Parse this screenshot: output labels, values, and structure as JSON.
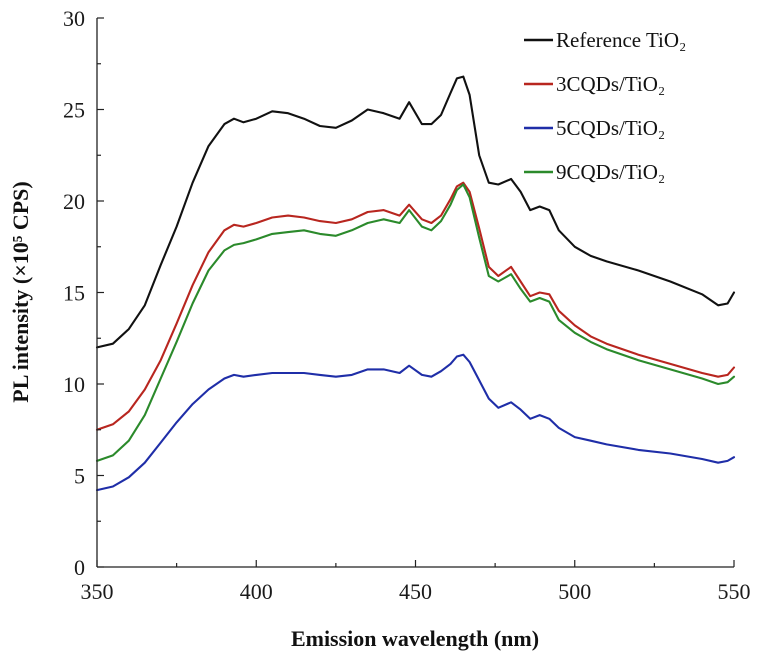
{
  "chart_data": {
    "type": "line",
    "title": "",
    "xlabel": "Emission wavelength (nm)",
    "ylabel": "PL intensity (×10⁵ CPS)",
    "xlim": [
      350,
      550
    ],
    "ylim": [
      0,
      30
    ],
    "xticks": [
      350,
      400,
      450,
      500,
      550
    ],
    "yticks": [
      0,
      5,
      10,
      15,
      20,
      25,
      30
    ],
    "legend_position": "top-right",
    "series": [
      {
        "name": "Reference TiO₂",
        "color": "#111111",
        "x": [
          350,
          355,
          360,
          365,
          370,
          375,
          380,
          385,
          390,
          393,
          396,
          400,
          405,
          410,
          415,
          420,
          425,
          430,
          435,
          440,
          445,
          448,
          452,
          455,
          458,
          461,
          463,
          465,
          467,
          470,
          473,
          476,
          480,
          483,
          486,
          489,
          492,
          495,
          500,
          505,
          510,
          520,
          530,
          540,
          545,
          548,
          550
        ],
        "y": [
          12.0,
          12.2,
          13.0,
          14.3,
          16.5,
          18.6,
          21.0,
          23.0,
          24.2,
          24.5,
          24.3,
          24.5,
          24.9,
          24.8,
          24.5,
          24.1,
          24.0,
          24.4,
          25.0,
          24.8,
          24.5,
          25.4,
          24.2,
          24.2,
          24.7,
          25.9,
          26.7,
          26.8,
          25.8,
          22.5,
          21.0,
          20.9,
          21.2,
          20.5,
          19.5,
          19.7,
          19.5,
          18.4,
          17.5,
          17.0,
          16.7,
          16.2,
          15.6,
          14.9,
          14.3,
          14.4,
          15.0
        ]
      },
      {
        "name": "3CQDs/TiO₂",
        "color": "#b8261f",
        "x": [
          350,
          355,
          360,
          365,
          370,
          375,
          380,
          385,
          390,
          393,
          396,
          400,
          405,
          410,
          415,
          420,
          425,
          430,
          435,
          440,
          445,
          448,
          452,
          455,
          458,
          461,
          463,
          465,
          467,
          470,
          473,
          476,
          480,
          483,
          486,
          489,
          492,
          495,
          500,
          505,
          510,
          520,
          530,
          540,
          545,
          548,
          550
        ],
        "y": [
          7.5,
          7.8,
          8.5,
          9.7,
          11.3,
          13.3,
          15.4,
          17.2,
          18.4,
          18.7,
          18.6,
          18.8,
          19.1,
          19.2,
          19.1,
          18.9,
          18.8,
          19.0,
          19.4,
          19.5,
          19.2,
          19.8,
          19.0,
          18.8,
          19.2,
          20.1,
          20.8,
          21.0,
          20.5,
          18.5,
          16.4,
          15.9,
          16.4,
          15.6,
          14.8,
          15.0,
          14.9,
          14.0,
          13.2,
          12.6,
          12.2,
          11.6,
          11.1,
          10.6,
          10.4,
          10.5,
          10.9
        ]
      },
      {
        "name": "5CQDs/TiO₂",
        "color": "#1f2ea8",
        "x": [
          350,
          355,
          360,
          365,
          370,
          375,
          380,
          385,
          390,
          393,
          396,
          400,
          405,
          410,
          415,
          420,
          425,
          430,
          435,
          440,
          445,
          448,
          452,
          455,
          458,
          461,
          463,
          465,
          467,
          470,
          473,
          476,
          480,
          483,
          486,
          489,
          492,
          495,
          500,
          505,
          510,
          520,
          530,
          540,
          545,
          548,
          550
        ],
        "y": [
          4.2,
          4.4,
          4.9,
          5.7,
          6.8,
          7.9,
          8.9,
          9.7,
          10.3,
          10.5,
          10.4,
          10.5,
          10.6,
          10.6,
          10.6,
          10.5,
          10.4,
          10.5,
          10.8,
          10.8,
          10.6,
          11.0,
          10.5,
          10.4,
          10.7,
          11.1,
          11.5,
          11.6,
          11.2,
          10.2,
          9.2,
          8.7,
          9.0,
          8.6,
          8.1,
          8.3,
          8.1,
          7.6,
          7.1,
          6.9,
          6.7,
          6.4,
          6.2,
          5.9,
          5.7,
          5.8,
          6.0
        ]
      },
      {
        "name": "9CQDs/TiO₂",
        "color": "#2b8a2b",
        "x": [
          350,
          355,
          360,
          365,
          370,
          375,
          380,
          385,
          390,
          393,
          396,
          400,
          405,
          410,
          415,
          420,
          425,
          430,
          435,
          440,
          445,
          448,
          452,
          455,
          458,
          461,
          463,
          465,
          467,
          470,
          473,
          476,
          480,
          483,
          486,
          489,
          492,
          495,
          500,
          505,
          510,
          520,
          530,
          540,
          545,
          548,
          550
        ],
        "y": [
          5.8,
          6.1,
          6.9,
          8.3,
          10.3,
          12.3,
          14.4,
          16.2,
          17.3,
          17.6,
          17.7,
          17.9,
          18.2,
          18.3,
          18.4,
          18.2,
          18.1,
          18.4,
          18.8,
          19.0,
          18.8,
          19.5,
          18.6,
          18.4,
          18.9,
          19.8,
          20.6,
          20.9,
          20.2,
          18.0,
          15.9,
          15.6,
          16.0,
          15.2,
          14.5,
          14.7,
          14.5,
          13.5,
          12.8,
          12.3,
          11.9,
          11.3,
          10.8,
          10.3,
          10.0,
          10.1,
          10.4
        ]
      }
    ]
  }
}
